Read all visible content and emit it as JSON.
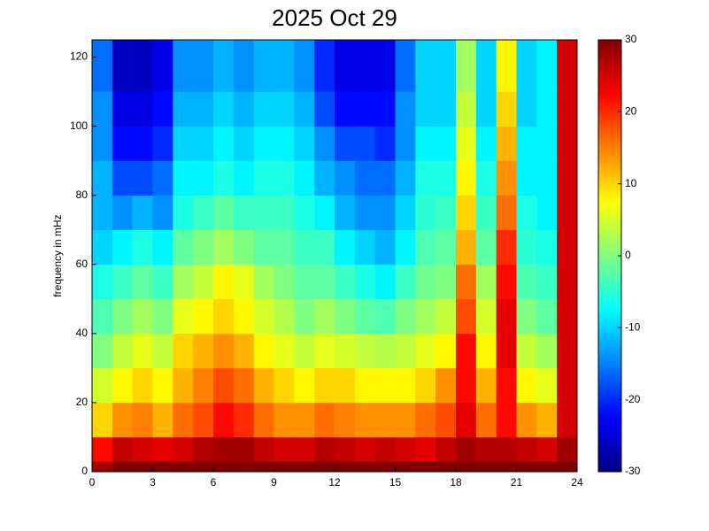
{
  "chart_data": {
    "type": "heatmap",
    "title": "2025 Oct 29",
    "y_label": "frequency in mHz",
    "colormap": "jet",
    "x_bins": [
      0,
      1,
      2,
      3,
      4,
      5,
      6,
      7,
      8,
      9,
      10,
      11,
      12,
      13,
      14,
      15,
      16,
      17,
      18,
      19,
      20,
      21,
      22,
      23,
      24
    ],
    "y_bins": [
      0,
      3,
      10,
      20,
      30,
      40,
      50,
      60,
      70,
      80,
      90,
      100,
      110,
      125
    ],
    "z": [
      [
        28,
        30,
        30,
        30,
        30,
        30,
        30,
        30,
        30,
        30,
        30,
        30,
        30,
        30,
        30,
        30,
        30,
        30,
        30,
        30,
        30,
        30,
        30,
        30
      ],
      [
        22,
        26,
        25,
        24,
        25,
        27,
        28,
        28,
        26,
        25,
        25,
        27,
        26,
        25,
        26,
        25,
        24,
        26,
        28,
        27,
        27,
        26,
        25,
        28
      ],
      [
        10,
        14,
        15,
        12,
        16,
        18,
        22,
        20,
        16,
        14,
        14,
        16,
        15,
        14,
        14,
        14,
        16,
        18,
        24,
        16,
        22,
        14,
        12,
        25
      ],
      [
        5,
        8,
        10,
        8,
        12,
        15,
        18,
        16,
        12,
        10,
        8,
        10,
        10,
        8,
        8,
        8,
        10,
        14,
        22,
        12,
        22,
        8,
        6,
        25
      ],
      [
        0,
        4,
        6,
        4,
        10,
        12,
        14,
        12,
        8,
        6,
        4,
        6,
        5,
        4,
        3,
        4,
        6,
        8,
        22,
        8,
        24,
        4,
        2,
        25
      ],
      [
        -3,
        0,
        2,
        0,
        6,
        8,
        10,
        8,
        5,
        3,
        0,
        2,
        0,
        -2,
        -3,
        0,
        2,
        4,
        18,
        5,
        24,
        0,
        -2,
        25
      ],
      [
        -6,
        -4,
        -2,
        -4,
        2,
        4,
        8,
        6,
        2,
        0,
        -2,
        -2,
        -4,
        -6,
        -8,
        -4,
        -1,
        0,
        16,
        2,
        22,
        -3,
        -4,
        25
      ],
      [
        -10,
        -8,
        -6,
        -8,
        -2,
        0,
        2,
        0,
        -2,
        -2,
        -4,
        -4,
        -8,
        -10,
        -12,
        -8,
        -3,
        -2,
        12,
        -2,
        20,
        -5,
        -6,
        25
      ],
      [
        -12,
        -14,
        -12,
        -14,
        -6,
        -4,
        -2,
        -4,
        -4,
        -4,
        -6,
        -8,
        -12,
        -14,
        -14,
        -10,
        -5,
        -4,
        10,
        -4,
        16,
        -6,
        -8,
        25
      ],
      [
        -12,
        -18,
        -18,
        -16,
        -8,
        -8,
        -6,
        -8,
        -6,
        -6,
        -8,
        -12,
        -14,
        -16,
        -16,
        -12,
        -6,
        -6,
        8,
        -6,
        14,
        -8,
        -8,
        25
      ],
      [
        -14,
        -22,
        -22,
        -20,
        -10,
        -10,
        -8,
        -10,
        -8,
        -8,
        -10,
        -14,
        -18,
        -18,
        -20,
        -14,
        -8,
        -8,
        6,
        -8,
        12,
        -8,
        -8,
        25
      ],
      [
        -14,
        -24,
        -24,
        -22,
        -12,
        -12,
        -10,
        -12,
        -10,
        -10,
        -12,
        -18,
        -22,
        -22,
        -22,
        -14,
        -10,
        -10,
        4,
        -10,
        10,
        -10,
        -8,
        25
      ],
      [
        -16,
        -26,
        -26,
        -24,
        -14,
        -14,
        -12,
        -14,
        -12,
        -12,
        -14,
        -20,
        -24,
        -24,
        -24,
        -16,
        -10,
        -10,
        2,
        -10,
        8,
        -10,
        -8,
        25
      ]
    ],
    "xlim": [
      0,
      24
    ],
    "xticks": [
      0,
      3,
      6,
      9,
      12,
      15,
      18,
      21,
      24
    ],
    "ylim": [
      0,
      125
    ],
    "yticks": [
      0,
      20,
      40,
      60,
      80,
      100,
      120
    ],
    "clim": [
      -30,
      30
    ],
    "cticks": [
      -30,
      -20,
      -10,
      0,
      10,
      20,
      30
    ]
  }
}
